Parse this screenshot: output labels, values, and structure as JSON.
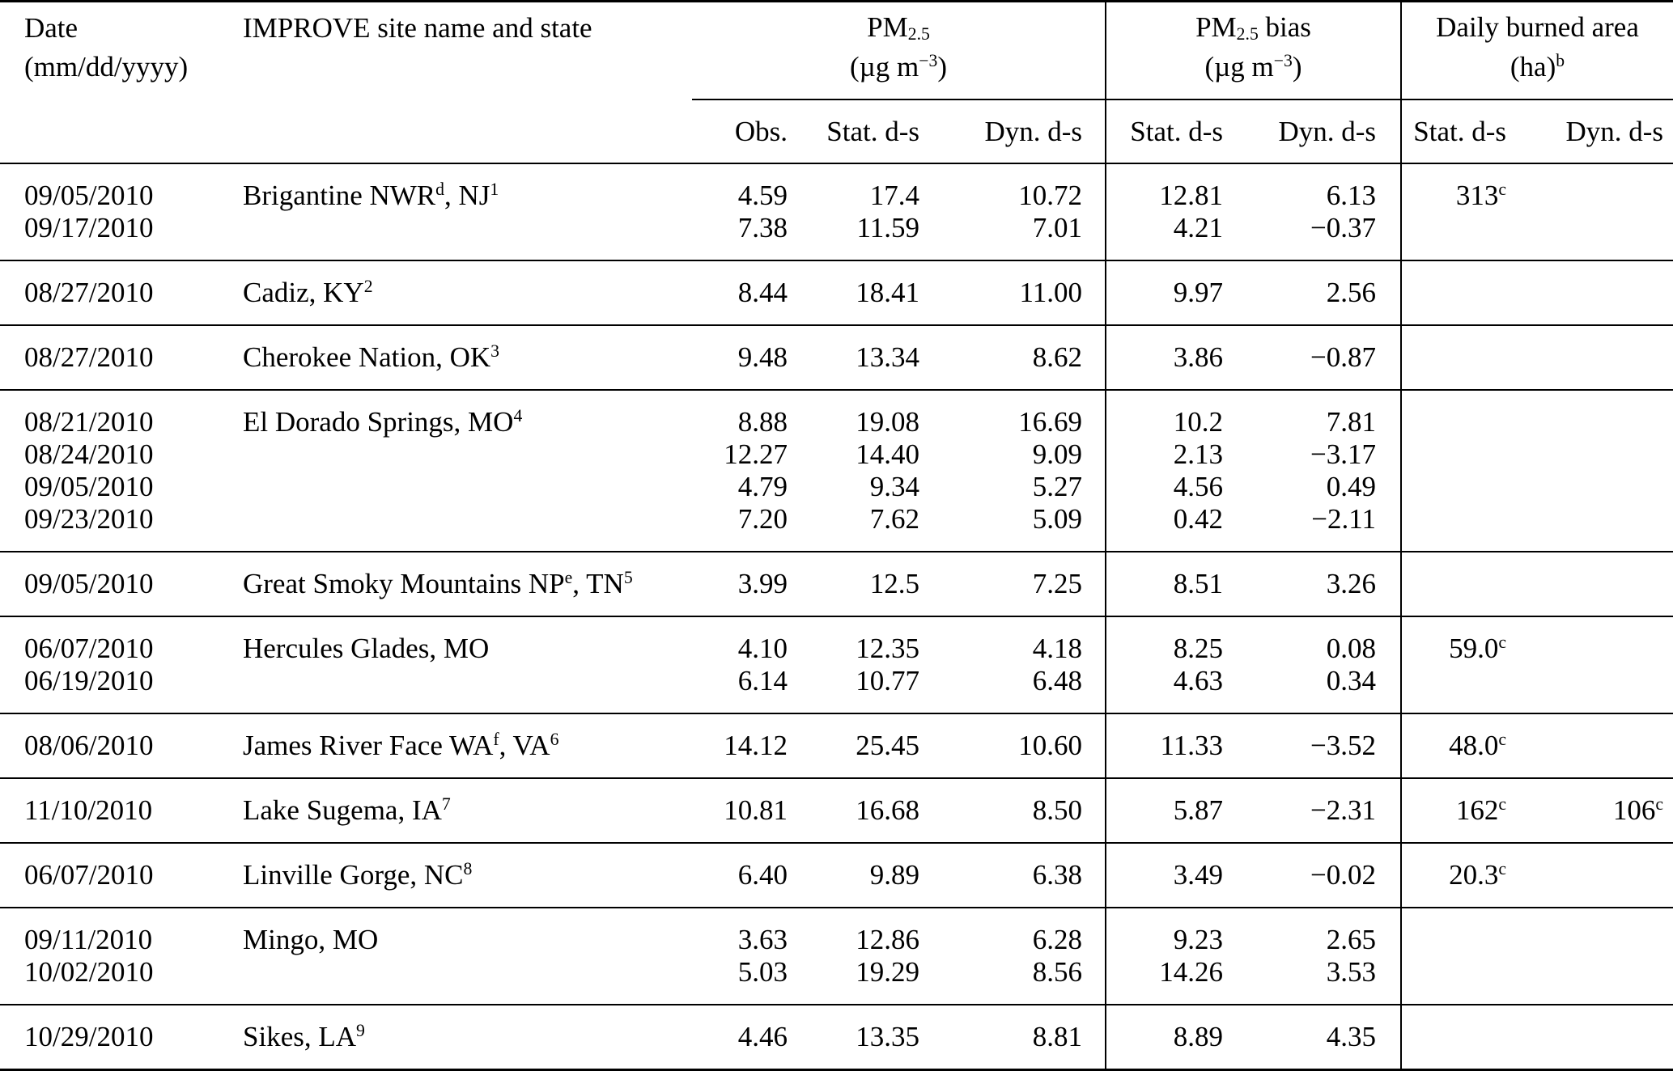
{
  "colors": {
    "text": "#000000",
    "background": "#ffffff",
    "rules": "#000000"
  },
  "table": {
    "header": {
      "date_label": "Date",
      "date_format": "(mm/dd/yyyy)",
      "site_label": "IMPROVE site name and state",
      "group_pm25_line1": [
        {
          "t": "PM"
        },
        {
          "sub": "2.5"
        }
      ],
      "group_pm25_line2": [
        {
          "t": "(µg m"
        },
        {
          "sup": "−3"
        },
        {
          "t": ")"
        }
      ],
      "group_bias_line1": [
        {
          "t": "PM"
        },
        {
          "sub": "2.5"
        },
        {
          "t": " bias"
        }
      ],
      "group_bias_line2": [
        {
          "t": "(µg m"
        },
        {
          "sup": "−3"
        },
        {
          "t": ")"
        }
      ],
      "group_burned_line1": [
        {
          "t": "Daily burned area"
        }
      ],
      "group_burned_line2": [
        {
          "t": "(ha)"
        },
        {
          "sup": "b"
        }
      ],
      "subheaders": [
        "Obs.",
        "Stat. d-s",
        "Dyn. d-s",
        "Stat. d-s",
        "Dyn. d-s",
        "Stat. d-s",
        "Dyn. d-s"
      ]
    },
    "rows": [
      {
        "date": "09/05/2010",
        "site": [
          {
            "t": "Brigantine NWR"
          },
          {
            "sup": "d"
          },
          {
            "t": ", NJ"
          },
          {
            "sup": "1"
          }
        ],
        "obs": "4.59",
        "stat": "17.4",
        "dyn": "10.72",
        "bias_stat": "12.81",
        "bias_dyn": "6.13",
        "burn_stat": [
          {
            "t": "313"
          },
          {
            "sup": "c"
          }
        ],
        "burn_dyn": []
      },
      {
        "date": "09/17/2010",
        "site": [],
        "obs": "7.38",
        "stat": "11.59",
        "dyn": "7.01",
        "bias_stat": "4.21",
        "bias_dyn": "−0.37",
        "burn_stat": [],
        "burn_dyn": []
      },
      {
        "date": "08/27/2010",
        "site": [
          {
            "t": "Cadiz, KY"
          },
          {
            "sup": "2"
          }
        ],
        "obs": "8.44",
        "stat": "18.41",
        "dyn": "11.00",
        "bias_stat": "9.97",
        "bias_dyn": "2.56",
        "burn_stat": [],
        "burn_dyn": []
      },
      {
        "date": "08/27/2010",
        "site": [
          {
            "t": "Cherokee Nation, OK"
          },
          {
            "sup": "3"
          }
        ],
        "obs": "9.48",
        "stat": "13.34",
        "dyn": "8.62",
        "bias_stat": "3.86",
        "bias_dyn": "−0.87",
        "burn_stat": [],
        "burn_dyn": []
      },
      {
        "date": "08/21/2010",
        "site": [
          {
            "t": "El Dorado Springs, MO"
          },
          {
            "sup": "4"
          }
        ],
        "obs": "8.88",
        "stat": "19.08",
        "dyn": "16.69",
        "bias_stat": "10.2",
        "bias_dyn": "7.81",
        "burn_stat": [],
        "burn_dyn": []
      },
      {
        "date": "08/24/2010",
        "site": [],
        "obs": "12.27",
        "stat": "14.40",
        "dyn": "9.09",
        "bias_stat": "2.13",
        "bias_dyn": "−3.17",
        "burn_stat": [],
        "burn_dyn": []
      },
      {
        "date": "09/05/2010",
        "site": [],
        "obs": "4.79",
        "stat": "9.34",
        "dyn": "5.27",
        "bias_stat": "4.56",
        "bias_dyn": "0.49",
        "burn_stat": [],
        "burn_dyn": []
      },
      {
        "date": "09/23/2010",
        "site": [],
        "obs": "7.20",
        "stat": "7.62",
        "dyn": "5.09",
        "bias_stat": "0.42",
        "bias_dyn": "−2.11",
        "burn_stat": [],
        "burn_dyn": []
      },
      {
        "date": "09/05/2010",
        "site": [
          {
            "t": "Great Smoky Mountains NP"
          },
          {
            "sup": "e"
          },
          {
            "t": ", TN"
          },
          {
            "sup": "5"
          }
        ],
        "obs": "3.99",
        "stat": "12.5",
        "dyn": "7.25",
        "bias_stat": "8.51",
        "bias_dyn": "3.26",
        "burn_stat": [],
        "burn_dyn": []
      },
      {
        "date": "06/07/2010",
        "site": [
          {
            "t": "Hercules Glades, MO"
          }
        ],
        "obs": "4.10",
        "stat": "12.35",
        "dyn": "4.18",
        "bias_stat": "8.25",
        "bias_dyn": "0.08",
        "burn_stat": [
          {
            "t": "59.0"
          },
          {
            "sup": "c"
          }
        ],
        "burn_dyn": []
      },
      {
        "date": "06/19/2010",
        "site": [],
        "obs": "6.14",
        "stat": "10.77",
        "dyn": "6.48",
        "bias_stat": "4.63",
        "bias_dyn": "0.34",
        "burn_stat": [],
        "burn_dyn": []
      },
      {
        "date": "08/06/2010",
        "site": [
          {
            "t": "James River Face WA"
          },
          {
            "sup": "f"
          },
          {
            "t": ", VA"
          },
          {
            "sup": "6"
          }
        ],
        "obs": "14.12",
        "stat": "25.45",
        "dyn": "10.60",
        "bias_stat": "11.33",
        "bias_dyn": "−3.52",
        "burn_stat": [
          {
            "t": "48.0"
          },
          {
            "sup": "c"
          }
        ],
        "burn_dyn": []
      },
      {
        "date": "11/10/2010",
        "site": [
          {
            "t": "Lake Sugema, IA"
          },
          {
            "sup": "7"
          }
        ],
        "obs": "10.81",
        "stat": "16.68",
        "dyn": "8.50",
        "bias_stat": "5.87",
        "bias_dyn": "−2.31",
        "burn_stat": [
          {
            "t": "162"
          },
          {
            "sup": "c"
          }
        ],
        "burn_dyn": [
          {
            "t": "106"
          },
          {
            "sup": "c"
          }
        ]
      },
      {
        "date": "06/07/2010",
        "site": [
          {
            "t": "Linville Gorge, NC"
          },
          {
            "sup": "8"
          }
        ],
        "obs": "6.40",
        "stat": "9.89",
        "dyn": "6.38",
        "bias_stat": "3.49",
        "bias_dyn": "−0.02",
        "burn_stat": [
          {
            "t": "20.3"
          },
          {
            "sup": "c"
          }
        ],
        "burn_dyn": []
      },
      {
        "date": "09/11/2010",
        "site": [
          {
            "t": "Mingo, MO"
          }
        ],
        "obs": "3.63",
        "stat": "12.86",
        "dyn": "6.28",
        "bias_stat": "9.23",
        "bias_dyn": "2.65",
        "burn_stat": [],
        "burn_dyn": []
      },
      {
        "date": "10/02/2010",
        "site": [],
        "obs": "5.03",
        "stat": "19.29",
        "dyn": "8.56",
        "bias_stat": "14.26",
        "bias_dyn": "3.53",
        "burn_stat": [],
        "burn_dyn": []
      },
      {
        "date": "10/29/2010",
        "site": [
          {
            "t": "Sikes, LA"
          },
          {
            "sup": "9"
          }
        ],
        "obs": "4.46",
        "stat": "13.35",
        "dyn": "8.81",
        "bias_stat": "8.89",
        "bias_dyn": "4.35",
        "burn_stat": [],
        "burn_dyn": []
      }
    ]
  }
}
